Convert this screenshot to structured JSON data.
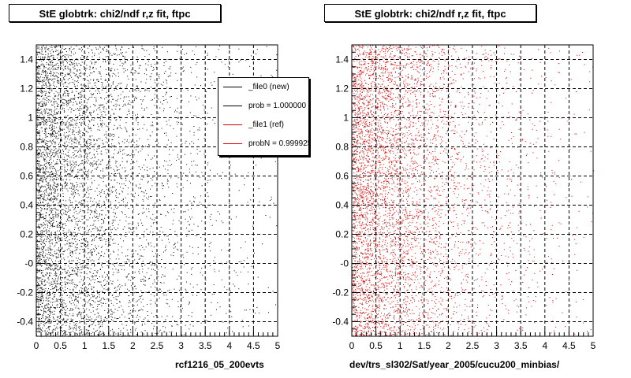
{
  "chart_data": [
    {
      "type": "scatter",
      "title": "StE globtrk: chi2/ndf r,z fit, ftpc",
      "xlabel": "rcf1216_05_200evts",
      "ylabel": "",
      "xlim": [
        0,
        5
      ],
      "ylim": [
        -0.5,
        1.5
      ],
      "x_ticks": [
        "0",
        "0.5",
        "1",
        "1.5",
        "2",
        "2.5",
        "3",
        "3.5",
        "4",
        "4.5",
        "5"
      ],
      "y_ticks": [
        "-0.4",
        "-0.2",
        "-0",
        "0.2",
        "0.4",
        "0.6",
        "0.8",
        "1",
        "1.2",
        "1.4"
      ],
      "grid": true,
      "marker_color": "#000000",
      "series": [
        {
          "name": "_file0 (new)",
          "description": "uniform in y over [-0.5, 1.5]; x density decays with x, highest near 0",
          "x_decay_scale": 1.2,
          "n_points": 5500
        }
      ]
    },
    {
      "type": "scatter",
      "title": "StE globtrk: chi2/ndf r,z fit, ftpc",
      "xlabel": "dev/trs_sl302/Sat/year_2005/cucu200_minbias/",
      "ylabel": "",
      "xlim": [
        0,
        5
      ],
      "ylim": [
        -0.5,
        1.5
      ],
      "x_ticks": [
        "0",
        "0.5",
        "1",
        "1.5",
        "2",
        "2.5",
        "3",
        "3.5",
        "4",
        "4.5",
        "5"
      ],
      "y_ticks": [
        "-0.4",
        "-0.2",
        "-0",
        "0.2",
        "0.4",
        "0.6",
        "0.8",
        "1",
        "1.2",
        "1.4"
      ],
      "grid": true,
      "marker_color": "#d40000",
      "series": [
        {
          "name": "_file1 (ref)",
          "description": "uniform in y over [-0.5, 1.5]; x density decays with x, highest near 0",
          "x_decay_scale": 1.2,
          "n_points": 5500
        }
      ]
    }
  ],
  "legend": {
    "placement": "top-right",
    "entries": [
      {
        "label": "_file0 (new)",
        "color": "#000000"
      },
      {
        "label": "prob = 1.000000",
        "color": "#000000"
      },
      {
        "label": "_file1 (ref)",
        "color": "#d40000"
      },
      {
        "label": "probN = 0.999925",
        "color": "#d40000"
      }
    ]
  }
}
